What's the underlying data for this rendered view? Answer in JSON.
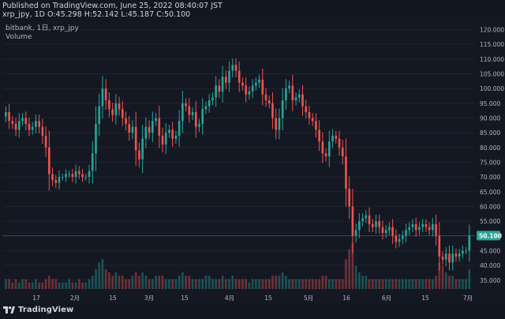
{
  "header": {
    "published": "Published on TradingView.com, June 25, 2022 08:40:07 JST",
    "ohlc": "xrp_jpy, 1D O:45.298 H:52.142 L:45.187 C:50.100"
  },
  "legend": {
    "symbol_line": "bitbank, 1日, xrp_jpy",
    "volume_label": "Volume"
  },
  "brand": {
    "text": "TradingView",
    "logo_icon": "tradingview-logo-icon"
  },
  "chart_data": {
    "type": "candlestick",
    "symbol": "xrp_jpy",
    "exchange": "bitbank",
    "interval": "1日",
    "last_price": 50.1,
    "last_price_label": "50.100",
    "ylim": [
      32,
      122
    ],
    "y_ticks": [
      "120.000",
      "115.000",
      "110.000",
      "105.000",
      "100.000",
      "95.000",
      "90.000",
      "85.000",
      "80.000",
      "75.000",
      "70.000",
      "65.000",
      "60.000",
      "55.000",
      "50.000",
      "45.000",
      "40.000",
      "35.000"
    ],
    "y_tick_values": [
      120,
      115,
      110,
      105,
      100,
      95,
      90,
      85,
      80,
      75,
      70,
      65,
      60,
      55,
      50,
      45,
      40,
      35
    ],
    "x_ticks": [
      "17",
      "2月",
      "15",
      "3月",
      "15",
      "4月",
      "15",
      "5月",
      "16",
      "6月",
      "15",
      "7月"
    ],
    "close": [
      92,
      89,
      88,
      86,
      89,
      90,
      88,
      86,
      87,
      89,
      87,
      84,
      80,
      71,
      69,
      68,
      70,
      70,
      71,
      71,
      70,
      72,
      71,
      70,
      70,
      72,
      78,
      88,
      94,
      100,
      96,
      93,
      91,
      95,
      93,
      90,
      88,
      85,
      87,
      79,
      76,
      83,
      87,
      85,
      89,
      90,
      84,
      81,
      85,
      86,
      83,
      84,
      89,
      95,
      94,
      91,
      92,
      87,
      88,
      93,
      94,
      96,
      97,
      101,
      99,
      104,
      102,
      106,
      108,
      106,
      102,
      101,
      98,
      99,
      101,
      102,
      103,
      98,
      96,
      95,
      90,
      86,
      90,
      96,
      100,
      101,
      96,
      97,
      98,
      94,
      92,
      90,
      89,
      86,
      82,
      78,
      77,
      82,
      84,
      83,
      80,
      77,
      66,
      60,
      50,
      52,
      55,
      56,
      57,
      54,
      53,
      55,
      53,
      51,
      52,
      53,
      50,
      48,
      49,
      50,
      52,
      53,
      54,
      52,
      53,
      54,
      53,
      52,
      54,
      50,
      43,
      42,
      44,
      41,
      44,
      43,
      44,
      45,
      45,
      50.1
    ],
    "volume": [
      3,
      3,
      2,
      3,
      2,
      3,
      3,
      2,
      2,
      3,
      2,
      2,
      3,
      4,
      3,
      3,
      2,
      2,
      2,
      3,
      2,
      2,
      3,
      2,
      2,
      3,
      4,
      6,
      8,
      9,
      6,
      5,
      4,
      5,
      4,
      4,
      3,
      3,
      4,
      5,
      4,
      5,
      4,
      3,
      3,
      4,
      4,
      4,
      3,
      3,
      3,
      3,
      4,
      5,
      4,
      4,
      3,
      3,
      3,
      3,
      4,
      4,
      3,
      3,
      3,
      4,
      3,
      3,
      4,
      3,
      3,
      3,
      3,
      2,
      3,
      3,
      3,
      3,
      3,
      3,
      4,
      4,
      4,
      5,
      4,
      3,
      3,
      3,
      3,
      3,
      3,
      3,
      3,
      3,
      3,
      4,
      4,
      3,
      3,
      3,
      3,
      3,
      9,
      12,
      14,
      7,
      5,
      4,
      4,
      3,
      3,
      3,
      3,
      3,
      3,
      3,
      3,
      3,
      3,
      3,
      3,
      3,
      3,
      3,
      3,
      3,
      3,
      3,
      3,
      4,
      8,
      7,
      5,
      4,
      4,
      3,
      3,
      3,
      3,
      6
    ]
  },
  "colors": {
    "background": "#141823",
    "up": "#26a69a",
    "down": "#ef5350",
    "grid": "#1f2430",
    "axis_text": "#b2b5be",
    "price_tag": "#26a69a"
  }
}
